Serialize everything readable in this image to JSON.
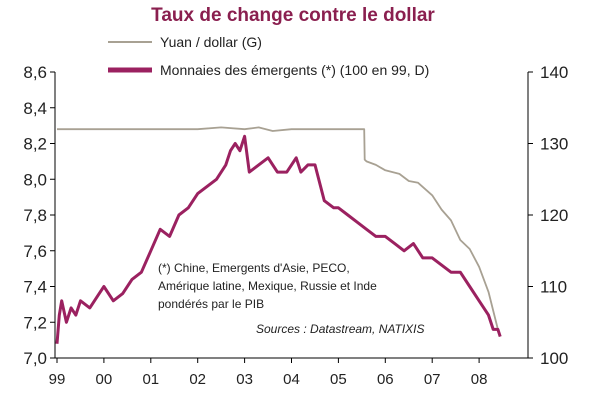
{
  "chart_data": {
    "type": "line",
    "title": "Taux de change contre le dollar",
    "left_axis": {
      "ylim": [
        7.0,
        8.6
      ],
      "ticks": [
        "7,0",
        "7,2",
        "7,4",
        "7,6",
        "7,8",
        "8,0",
        "8,2",
        "8,4",
        "8,6"
      ]
    },
    "right_axis": {
      "ylim": [
        100,
        140
      ],
      "ticks": [
        "100",
        "110",
        "120",
        "130",
        "140"
      ]
    },
    "x_ticks": [
      "99",
      "00",
      "01",
      "02",
      "03",
      "04",
      "05",
      "06",
      "07",
      "08"
    ],
    "x_tick_values": [
      1999,
      2000,
      2001,
      2002,
      2003,
      2004,
      2005,
      2006,
      2007,
      2008
    ],
    "xlim": [
      1999,
      2009.0
    ],
    "grid": false,
    "legend_position": "top",
    "series": [
      {
        "name": "Yuan / dollar (G)",
        "axis": "left",
        "color": "#a8a193",
        "x": [
          1999,
          2000,
          2001,
          2002,
          2002.5,
          2003.0,
          2003.3,
          2003.6,
          2004,
          2004.5,
          2005.0,
          2005.55,
          2005.56,
          2005.6,
          2005.8,
          2006.0,
          2006.3,
          2006.5,
          2006.7,
          2007.0,
          2007.2,
          2007.4,
          2007.6,
          2007.8,
          2008.0,
          2008.2,
          2008.4,
          2008.45
        ],
        "y": [
          8.28,
          8.28,
          8.28,
          8.28,
          8.29,
          8.28,
          8.29,
          8.27,
          8.28,
          8.28,
          8.28,
          8.28,
          8.11,
          8.1,
          8.08,
          8.05,
          8.03,
          7.99,
          7.98,
          7.91,
          7.83,
          7.77,
          7.66,
          7.61,
          7.51,
          7.37,
          7.16,
          7.12
        ]
      },
      {
        "name": "Monnaies des émergents (*) (100 en 99, D)",
        "axis": "right",
        "color": "#9b2160",
        "x": [
          1999.0,
          1999.05,
          1999.1,
          1999.2,
          1999.3,
          1999.4,
          1999.5,
          1999.7,
          1999.9,
          2000.0,
          2000.2,
          2000.4,
          2000.6,
          2000.8,
          2001.0,
          2001.2,
          2001.4,
          2001.6,
          2001.8,
          2002.0,
          2002.2,
          2002.4,
          2002.6,
          2002.7,
          2002.8,
          2002.9,
          2003.0,
          2003.1,
          2003.3,
          2003.5,
          2003.7,
          2003.9,
          2004.1,
          2004.2,
          2004.35,
          2004.5,
          2004.7,
          2004.9,
          2005.0,
          2005.2,
          2005.4,
          2005.6,
          2005.8,
          2006.0,
          2006.2,
          2006.4,
          2006.6,
          2006.8,
          2007.0,
          2007.2,
          2007.4,
          2007.6,
          2007.8,
          2008.0,
          2008.2,
          2008.3,
          2008.4,
          2008.45
        ],
        "y": [
          102,
          106,
          108,
          105,
          107,
          106,
          108,
          107,
          109,
          110,
          108,
          109,
          111,
          112,
          115,
          118,
          117,
          120,
          121,
          123,
          124,
          125,
          127,
          129,
          130,
          129,
          131,
          126,
          127,
          128,
          126,
          126,
          128,
          126,
          127,
          127,
          122,
          121,
          121,
          120,
          119,
          118,
          117,
          117,
          116,
          115,
          116,
          114,
          114,
          113,
          112,
          112,
          110,
          108,
          106,
          104,
          104,
          103
        ]
      }
    ],
    "annotations": [
      "(*) Chine, Emergents d'Asie, PECO,",
      "Amérique latine, Mexique, Russie et Inde",
      "pondérés par le PIB"
    ],
    "source": "Sources : Datastream, NATIXIS"
  }
}
